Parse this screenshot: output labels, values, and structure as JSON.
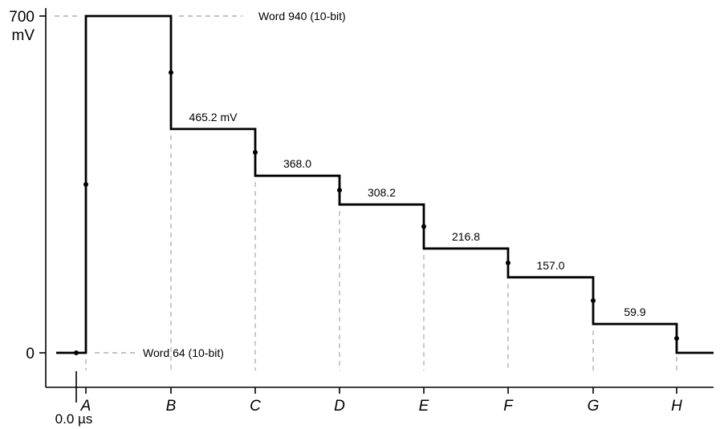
{
  "chart_data": {
    "type": "line",
    "y_unit": "mV",
    "ylim": [
      0,
      700
    ],
    "y_ticks": [
      {
        "value": 0,
        "label": "0"
      },
      {
        "value": 700,
        "label": "700"
      }
    ],
    "y_unit_label": "mV",
    "x_origin_label": "0.0 µs",
    "x_ticks": [
      "A",
      "B",
      "C",
      "D",
      "E",
      "F",
      "G",
      "H"
    ],
    "steps": [
      {
        "from": "A",
        "to": "B",
        "value": 700
      },
      {
        "from": "B",
        "to": "C",
        "value": 465.2,
        "label": "465.2 mV"
      },
      {
        "from": "C",
        "to": "D",
        "value": 368.0,
        "label": "368.0"
      },
      {
        "from": "D",
        "to": "E",
        "value": 308.2,
        "label": "308.2"
      },
      {
        "from": "E",
        "to": "F",
        "value": 216.8,
        "label": "216.8"
      },
      {
        "from": "F",
        "to": "G",
        "value": 157.0,
        "label": "157.0"
      },
      {
        "from": "G",
        "to": "H",
        "value": 59.9,
        "label": "59.9"
      }
    ],
    "annotations": {
      "top": "Word 940 (10-bit)",
      "bottom": "Word 64 (10-bit)"
    },
    "grid": false
  }
}
